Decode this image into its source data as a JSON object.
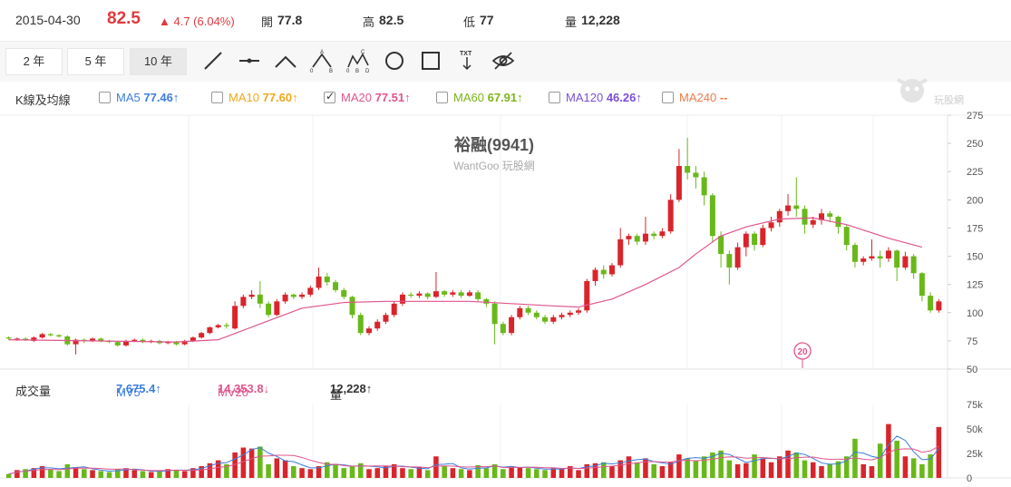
{
  "header": {
    "date": "2015-04-30",
    "price": "82.5",
    "change": "▲ 4.7 (6.04%)",
    "open_label": "開",
    "open": "77.8",
    "high_label": "高",
    "high": "82.5",
    "low_label": "低",
    "low": "77",
    "vol_label": "量",
    "volume": "12,228"
  },
  "toolbar": {
    "ranges": [
      "2 年",
      "5 年",
      "10 年"
    ],
    "active_range": "10 年",
    "tools": [
      "line-tool-icon",
      "horizontal-line-icon",
      "angle-tool-icon",
      "abc-pattern-icon",
      "abcd-pattern-icon",
      "circle-tool-icon",
      "rectangle-tool-icon",
      "text-tool-icon",
      "hide-icon"
    ],
    "txt_label": "TXT"
  },
  "ma_legend": {
    "label": "K線及均線",
    "items": [
      {
        "name": "MA5",
        "value": "77.46↑",
        "color": "#3b7ddd",
        "checked": false
      },
      {
        "name": "MA10",
        "value": "77.60↑",
        "color": "#f0a818",
        "checked": false
      },
      {
        "name": "MA20",
        "value": "77.51↑",
        "color": "#e0558d",
        "checked": true
      },
      {
        "name": "MA60",
        "value": "67.91↑",
        "color": "#7cb518",
        "checked": false
      },
      {
        "name": "MA120",
        "value": "46.26↑",
        "color": "#7a4fd6",
        "checked": false
      },
      {
        "name": "MA240",
        "value": "--",
        "color": "#f07a4a",
        "checked": false
      }
    ]
  },
  "watermark": {
    "title": "裕融(9941)",
    "subtitle": "WantGoo 玩股網",
    "logo_text": "玩股網"
  },
  "marker": "20",
  "volume_legend": {
    "label": "成交量",
    "mv5_name": "MV5",
    "mv5": "7,675.4↑",
    "mv20_name": "MV20",
    "mv20": "14,353.8↓",
    "vol_name": "量",
    "vol": "12,228↑"
  },
  "colors": {
    "up": "#d8252b",
    "down": "#69b81a",
    "ma20": "#e0558d",
    "mv5": "#3b7ddd",
    "mv20": "#e0558d"
  },
  "chart_data": {
    "type": "candlestick",
    "price_axis": {
      "ticks": [
        275,
        250,
        225,
        200,
        175,
        150,
        125,
        100,
        75,
        50
      ],
      "ylim": [
        50,
        275
      ]
    },
    "volume_axis": {
      "ticks": [
        "75k",
        "50k",
        "25k",
        "0"
      ],
      "ylim": [
        0,
        75000
      ]
    },
    "candles": [
      [
        78,
        77,
        79,
        76
      ],
      [
        76,
        77,
        78,
        75
      ],
      [
        77,
        76,
        78,
        75
      ],
      [
        75,
        78,
        79,
        74
      ],
      [
        78,
        81,
        82,
        77
      ],
      [
        81,
        80,
        82,
        79
      ],
      [
        80,
        79,
        81,
        78
      ],
      [
        79,
        72,
        80,
        71
      ],
      [
        72,
        76,
        77,
        63
      ],
      [
        76,
        75,
        77,
        73
      ],
      [
        75,
        77,
        78,
        74
      ],
      [
        77,
        75,
        78,
        74
      ],
      [
        75,
        74,
        76,
        73
      ],
      [
        74,
        71,
        75,
        70
      ],
      [
        71,
        75,
        76,
        70
      ],
      [
        75,
        76,
        77,
        74
      ],
      [
        76,
        74,
        77,
        73
      ],
      [
        74,
        75,
        76,
        73
      ],
      [
        75,
        73,
        76,
        72
      ],
      [
        73,
        74,
        75,
        72
      ],
      [
        74,
        72,
        75,
        71
      ],
      [
        72,
        75,
        76,
        71
      ],
      [
        75,
        78,
        79,
        74
      ],
      [
        78,
        82,
        83,
        77
      ],
      [
        82,
        87,
        88,
        81
      ],
      [
        87,
        89,
        90,
        86
      ],
      [
        89,
        88,
        91,
        86
      ],
      [
        86,
        106,
        110,
        85
      ],
      [
        106,
        114,
        116,
        104
      ],
      [
        114,
        116,
        120,
        112
      ],
      [
        116,
        108,
        128,
        104
      ],
      [
        108,
        98,
        110,
        96
      ],
      [
        98,
        110,
        112,
        97
      ],
      [
        110,
        116,
        118,
        108
      ],
      [
        116,
        114,
        117,
        112
      ],
      [
        114,
        116,
        118,
        112
      ],
      [
        116,
        122,
        124,
        114
      ],
      [
        122,
        132,
        140,
        120
      ],
      [
        132,
        127,
        135,
        124
      ],
      [
        127,
        120,
        129,
        118
      ],
      [
        120,
        114,
        122,
        112
      ],
      [
        114,
        98,
        115,
        95
      ],
      [
        98,
        82,
        100,
        80
      ],
      [
        82,
        86,
        88,
        80
      ],
      [
        86,
        92,
        94,
        84
      ],
      [
        92,
        98,
        100,
        90
      ],
      [
        98,
        108,
        110,
        96
      ],
      [
        108,
        116,
        118,
        106
      ],
      [
        116,
        115,
        118,
        113
      ],
      [
        115,
        117,
        119,
        113
      ],
      [
        117,
        114,
        118,
        112
      ],
      [
        114,
        119,
        136,
        113
      ],
      [
        119,
        116,
        120,
        114
      ],
      [
        116,
        118,
        120,
        114
      ],
      [
        118,
        115,
        120,
        113
      ],
      [
        115,
        118,
        120,
        114
      ],
      [
        118,
        112,
        120,
        110
      ],
      [
        112,
        108,
        113,
        105
      ],
      [
        108,
        90,
        110,
        72
      ],
      [
        90,
        82,
        92,
        80
      ],
      [
        82,
        96,
        98,
        80
      ],
      [
        96,
        104,
        106,
        94
      ],
      [
        104,
        100,
        106,
        98
      ],
      [
        100,
        96,
        102,
        94
      ],
      [
        96,
        92,
        98,
        90
      ],
      [
        92,
        96,
        98,
        90
      ],
      [
        96,
        98,
        100,
        94
      ],
      [
        98,
        100,
        102,
        96
      ],
      [
        100,
        102,
        104,
        98
      ],
      [
        102,
        128,
        130,
        100
      ],
      [
        128,
        138,
        140,
        124
      ],
      [
        138,
        134,
        142,
        130
      ],
      [
        134,
        142,
        144,
        132
      ],
      [
        142,
        165,
        175,
        140
      ],
      [
        165,
        168,
        170,
        160
      ],
      [
        168,
        163,
        170,
        160
      ],
      [
        163,
        170,
        185,
        160
      ],
      [
        170,
        168,
        172,
        165
      ],
      [
        168,
        172,
        175,
        166
      ],
      [
        172,
        200,
        205,
        170
      ],
      [
        200,
        230,
        245,
        198
      ],
      [
        230,
        224,
        255,
        218
      ],
      [
        224,
        220,
        230,
        210
      ],
      [
        220,
        204,
        225,
        195
      ],
      [
        204,
        168,
        206,
        162
      ],
      [
        168,
        152,
        172,
        140
      ],
      [
        152,
        140,
        155,
        125
      ],
      [
        140,
        158,
        162,
        138
      ],
      [
        158,
        170,
        172,
        150
      ],
      [
        170,
        160,
        172,
        155
      ],
      [
        160,
        175,
        178,
        158
      ],
      [
        175,
        180,
        185,
        172
      ],
      [
        180,
        190,
        192,
        176
      ],
      [
        190,
        195,
        205,
        186
      ],
      [
        195,
        192,
        220,
        185
      ],
      [
        192,
        178,
        195,
        170
      ],
      [
        178,
        182,
        185,
        175
      ],
      [
        182,
        188,
        192,
        178
      ],
      [
        188,
        185,
        190,
        180
      ],
      [
        185,
        176,
        186,
        170
      ],
      [
        176,
        160,
        178,
        155
      ],
      [
        160,
        145,
        162,
        140
      ],
      [
        145,
        148,
        150,
        142
      ],
      [
        148,
        150,
        165,
        146
      ],
      [
        150,
        148,
        155,
        140
      ],
      [
        148,
        155,
        158,
        145
      ],
      [
        155,
        140,
        156,
        128
      ],
      [
        140,
        150,
        154,
        138
      ],
      [
        150,
        135,
        152,
        130
      ],
      [
        135,
        115,
        136,
        110
      ],
      [
        115,
        102,
        118,
        100
      ],
      [
        102,
        110,
        112,
        100
      ]
    ],
    "ma20": [
      [
        0,
        76
      ],
      [
        10,
        75
      ],
      [
        20,
        74
      ],
      [
        25,
        76
      ],
      [
        30,
        90
      ],
      [
        35,
        104
      ],
      [
        40,
        109
      ],
      [
        45,
        110
      ],
      [
        50,
        110
      ],
      [
        55,
        110
      ],
      [
        60,
        108
      ],
      [
        65,
        106
      ],
      [
        68,
        105
      ],
      [
        72,
        112
      ],
      [
        76,
        125
      ],
      [
        80,
        140
      ],
      [
        82,
        152
      ],
      [
        85,
        168
      ],
      [
        88,
        176
      ],
      [
        92,
        183
      ],
      [
        96,
        184
      ],
      [
        100,
        178
      ],
      [
        105,
        166
      ],
      [
        109,
        158
      ]
    ],
    "volumes": [
      4,
      8,
      9,
      10,
      12,
      9,
      7,
      14,
      11,
      9,
      8,
      7,
      6,
      9,
      10,
      8,
      7,
      6,
      7,
      9,
      8,
      7,
      10,
      12,
      15,
      18,
      14,
      26,
      31,
      30,
      32,
      14,
      20,
      18,
      12,
      10,
      9,
      12,
      16,
      14,
      10,
      12,
      15,
      9,
      10,
      12,
      14,
      10,
      9,
      11,
      8,
      22,
      12,
      10,
      9,
      8,
      13,
      10,
      14,
      9,
      12,
      11,
      10,
      9,
      8,
      10,
      9,
      12,
      8,
      14,
      15,
      16,
      12,
      18,
      22,
      16,
      20,
      14,
      12,
      16,
      24,
      20,
      18,
      22,
      26,
      28,
      18,
      14,
      15,
      24,
      20,
      16,
      22,
      28,
      26,
      18,
      16,
      12,
      14,
      17,
      22,
      40,
      14,
      12,
      35,
      55,
      38,
      22,
      20,
      14,
      24,
      52
    ]
  }
}
